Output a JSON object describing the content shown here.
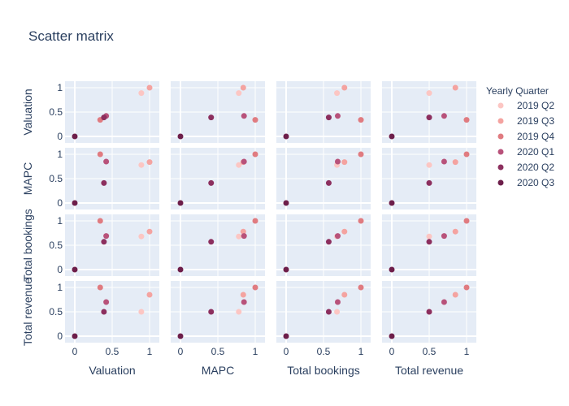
{
  "chart_data": {
    "type": "scatter",
    "title": "Scatter matrix",
    "dimensions": [
      "Valuation",
      "MAPC",
      "Total bookings",
      "Total revenue"
    ],
    "axis_range": [
      0,
      1
    ],
    "ticks": [
      0,
      0.5,
      1
    ],
    "tick_labels": [
      "0",
      "0.5",
      "1"
    ],
    "grid": true,
    "legend": {
      "title": "Yearly Quarter",
      "position": "right"
    },
    "series": [
      {
        "name": "2019 Q2",
        "color": "#fcc6c3",
        "values": {
          "Valuation": 0.89,
          "MAPC": 0.78,
          "Total bookings": 0.68,
          "Total revenue": 0.5
        }
      },
      {
        "name": "2019 Q3",
        "color": "#f4a3a0",
        "values": {
          "Valuation": 1.0,
          "MAPC": 0.84,
          "Total bookings": 0.78,
          "Total revenue": 0.85
        }
      },
      {
        "name": "2019 Q4",
        "color": "#e07b80",
        "values": {
          "Valuation": 0.34,
          "MAPC": 1.0,
          "Total bookings": 1.0,
          "Total revenue": 1.0
        }
      },
      {
        "name": "2020 Q1",
        "color": "#b8527a",
        "values": {
          "Valuation": 0.42,
          "MAPC": 0.85,
          "Total bookings": 0.69,
          "Total revenue": 0.7
        }
      },
      {
        "name": "2020 Q2",
        "color": "#8c2f5e",
        "values": {
          "Valuation": 0.39,
          "MAPC": 0.41,
          "Total bookings": 0.57,
          "Total revenue": 0.5
        }
      },
      {
        "name": "2020 Q3",
        "color": "#6d1e4a",
        "values": {
          "Valuation": 0.0,
          "MAPC": 0.0,
          "Total bookings": 0.0,
          "Total revenue": 0.0
        }
      }
    ]
  }
}
